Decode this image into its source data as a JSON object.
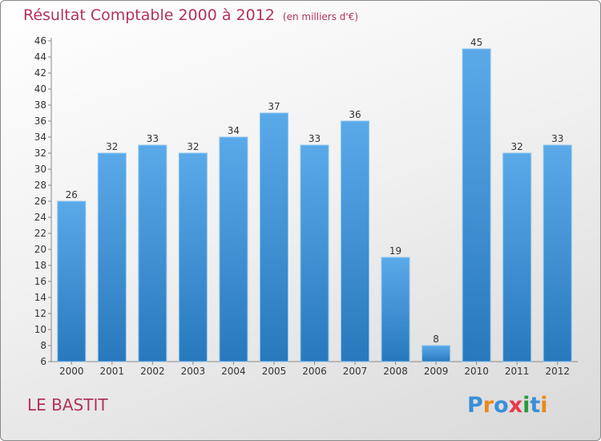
{
  "header": {
    "title": "Résultat Comptable 2000 à 2012",
    "subtitle": "(en milliers d'€)"
  },
  "footer": {
    "commune": "LE BASTIT",
    "logo": [
      "P",
      "r",
      "o",
      "x",
      "i",
      "t",
      "i"
    ],
    "logo_colors": [
      "#3a8fd8",
      "#e88a1a",
      "#3a8fd8",
      "#e83a4a",
      "#2a9a3a",
      "#3a8fd8",
      "#e88a1a"
    ]
  },
  "colors": {
    "bar": "#4f9fe0",
    "bar_dark": "#2a7ac0",
    "accent": "#b2335a"
  },
  "chart_data": {
    "type": "bar",
    "title": "Résultat Comptable 2000 à 2012",
    "subtitle": "(en milliers d'€)",
    "categories": [
      "2000",
      "2001",
      "2002",
      "2003",
      "2004",
      "2005",
      "2006",
      "2007",
      "2008",
      "2009",
      "2010",
      "2011",
      "2012"
    ],
    "values": [
      26,
      32,
      33,
      32,
      34,
      37,
      33,
      36,
      19,
      8,
      45,
      32,
      33
    ],
    "ylim": [
      6,
      46
    ],
    "ytick_step": 2,
    "grid": false,
    "data_labels": true
  }
}
